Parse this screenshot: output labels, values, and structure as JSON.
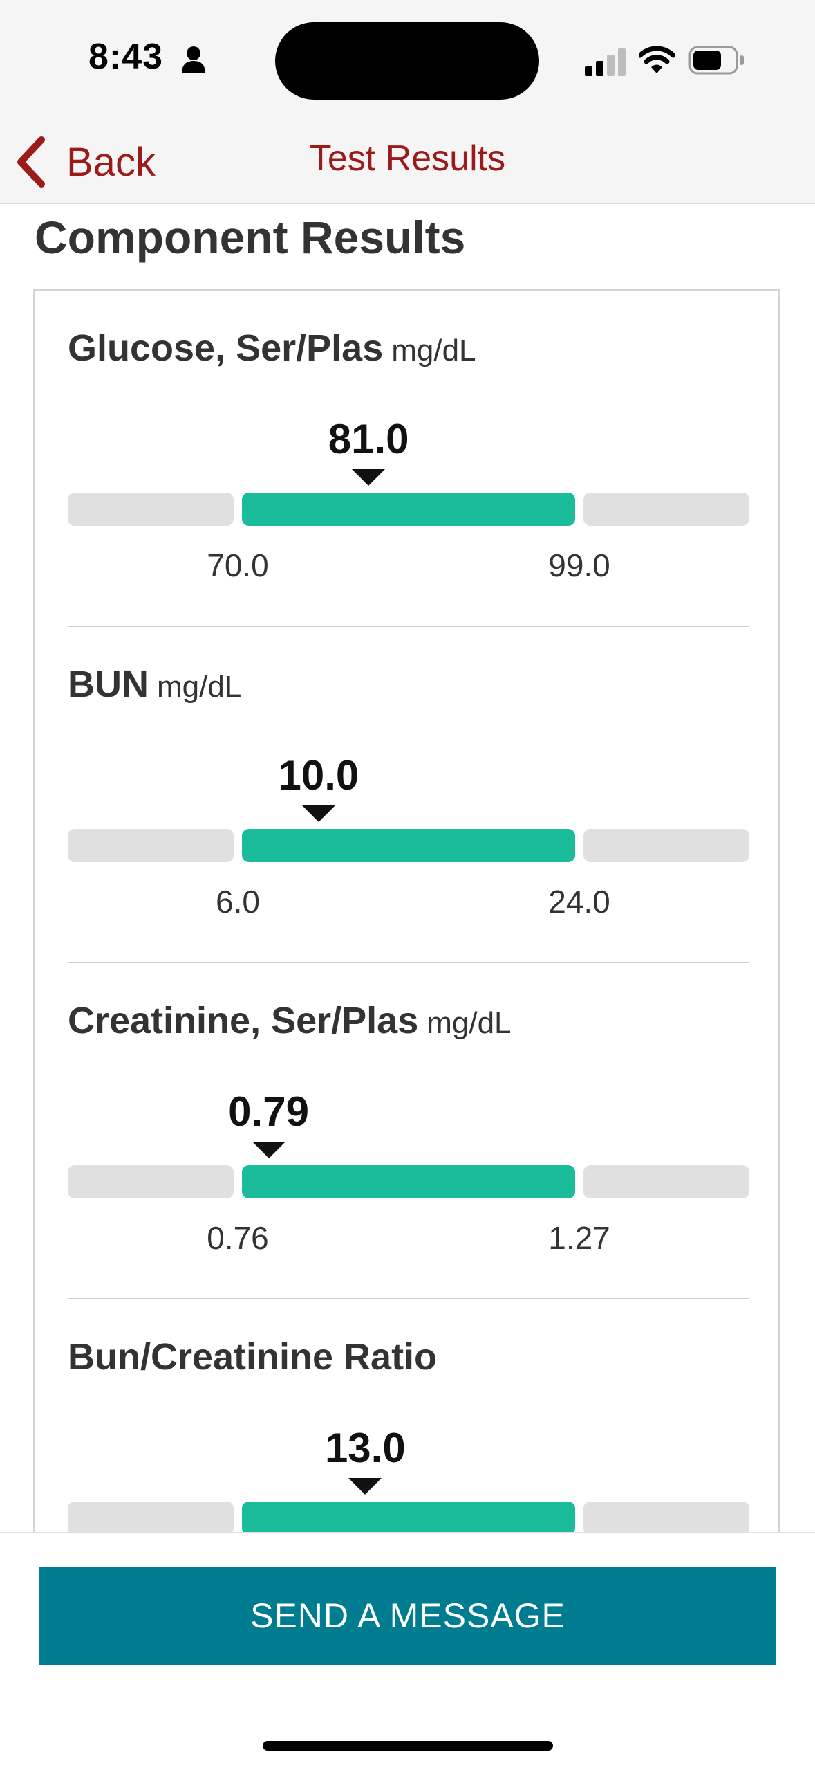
{
  "status_bar": {
    "time": "8:43"
  },
  "nav": {
    "back_label": "Back",
    "title": "Test Results"
  },
  "section_heading": "Component Results",
  "results": [
    {
      "name": "Glucose, Ser/Plas",
      "unit": "mg/dL",
      "value": "81.0",
      "low": "70.0",
      "high": "99.0",
      "value_fraction_of_normal": 0.38
    },
    {
      "name": "BUN",
      "unit": "mg/dL",
      "value": "10.0",
      "low": "6.0",
      "high": "24.0",
      "value_fraction_of_normal": 0.23
    },
    {
      "name": "Creatinine, Ser/Plas",
      "unit": "mg/dL",
      "value": "0.79",
      "low": "0.76",
      "high": "1.27",
      "value_fraction_of_normal": 0.08
    },
    {
      "name": "Bun/Creatinine Ratio",
      "unit": "",
      "value": "13.0",
      "low": "",
      "high": "",
      "value_fraction_of_normal": 0.37
    }
  ],
  "colors": {
    "accent_red": "#9b1b1b",
    "normal_range": "#1abc9c",
    "out_of_range": "#e0e0e0",
    "button": "#007c91"
  },
  "send_button_label": "SEND A MESSAGE"
}
